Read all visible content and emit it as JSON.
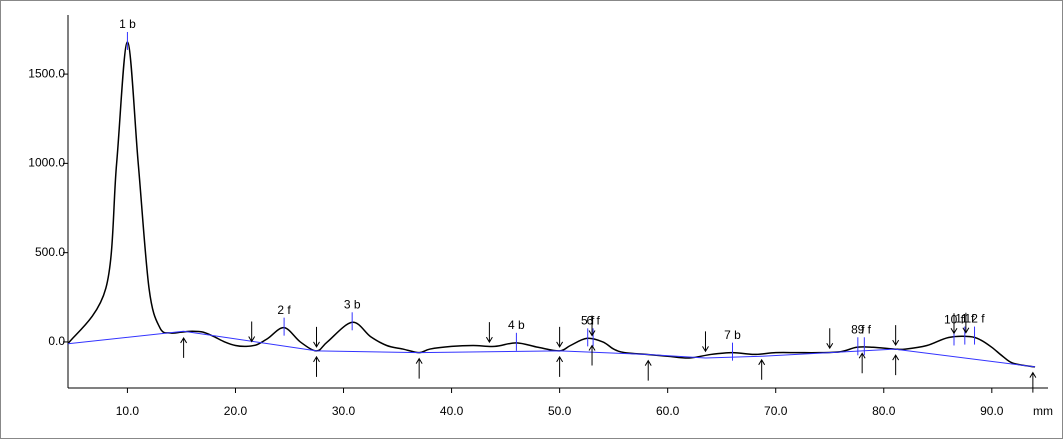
{
  "chart_data": {
    "type": "line",
    "x_label": "mm",
    "xlim": [
      4.5,
      95.2
    ],
    "ylim": [
      -258,
      1803
    ],
    "xticks": [
      {
        "value": 10,
        "label": "10.0"
      },
      {
        "value": 20,
        "label": "20.0"
      },
      {
        "value": 30,
        "label": "30.0"
      },
      {
        "value": 40,
        "label": "40.0"
      },
      {
        "value": 50,
        "label": "50.0"
      },
      {
        "value": 60,
        "label": "60.0"
      },
      {
        "value": 70,
        "label": "70.0"
      },
      {
        "value": 80,
        "label": "80.0"
      },
      {
        "value": 90,
        "label": "90.0"
      }
    ],
    "yticks": [
      {
        "value": 0,
        "label": "0.0"
      },
      {
        "value": 500,
        "label": "500.0"
      },
      {
        "value": 1000,
        "label": "1000.0"
      },
      {
        "value": 1500,
        "label": "1500.0"
      }
    ],
    "series": [
      {
        "color": "#000000",
        "x": [
          4.5,
          8,
          9,
          10,
          11,
          12,
          13,
          14,
          15,
          16,
          17,
          18,
          19,
          20,
          21,
          22,
          23,
          24.5,
          26,
          27.5,
          28.5,
          30.8,
          32.5,
          34,
          35.5,
          37,
          38,
          40,
          42,
          44,
          46,
          48,
          50,
          51,
          52.5,
          54,
          55,
          56,
          58,
          60,
          62,
          64,
          66,
          68,
          70,
          72,
          74,
          76,
          77.5,
          79,
          81,
          82,
          84,
          86,
          88,
          89,
          90,
          91,
          92,
          94
        ],
        "values": [
          -10,
          300,
          1000,
          1680,
          1000,
          300,
          80,
          50,
          55,
          60,
          55,
          30,
          0,
          -20,
          -25,
          -15,
          20,
          80,
          0,
          -50,
          0,
          110,
          30,
          -20,
          -40,
          -60,
          -40,
          -25,
          -20,
          -25,
          -5,
          -30,
          -50,
          -20,
          20,
          0,
          -40,
          -60,
          -70,
          -80,
          -90,
          -70,
          -60,
          -70,
          -60,
          -60,
          -60,
          -55,
          -30,
          -30,
          -40,
          -40,
          -20,
          25,
          30,
          10,
          -30,
          -80,
          -120,
          -140
        ]
      },
      {
        "color": "#3333ff",
        "x": [
          4.5,
          15.2,
          27.5,
          37,
          50,
          58,
          63.5,
          68.7,
          75,
          81,
          94
        ],
        "values": [
          -10,
          60,
          -50,
          -60,
          -50,
          -70,
          -90,
          -80,
          -60,
          -40,
          -140
        ]
      }
    ],
    "peaks": [
      {
        "label": "1 b",
        "x": 10,
        "y": 1680
      },
      {
        "label": "2 f",
        "x": 24.5,
        "y": 80
      },
      {
        "label": "3 b",
        "x": 30.8,
        "y": 110
      },
      {
        "label": "4 b",
        "x": 46,
        "y": -5
      },
      {
        "label": "5 f",
        "x": 52.6,
        "y": 20
      },
      {
        "label": "6 f",
        "x": 53.1,
        "y": 20
      },
      {
        "label": "7 b",
        "x": 66,
        "y": -60
      },
      {
        "label": "8 f",
        "x": 77.6,
        "y": -30
      },
      {
        "label": "9 f",
        "x": 78.2,
        "y": -30
      },
      {
        "label": "10 f",
        "x": 86.5,
        "y": 25
      },
      {
        "label": "11 f",
        "x": 87.5,
        "y": 30
      },
      {
        "label": "12 f",
        "x": 88.4,
        "y": 30
      }
    ],
    "events_up": [
      15.2,
      27.5,
      37,
      50,
      53,
      58.2,
      68.7,
      78,
      81.1,
      93.8
    ],
    "events_down": [
      21.5,
      27.5,
      43.5,
      50,
      53,
      63.5,
      75,
      81.1,
      86.5,
      87.6
    ]
  }
}
